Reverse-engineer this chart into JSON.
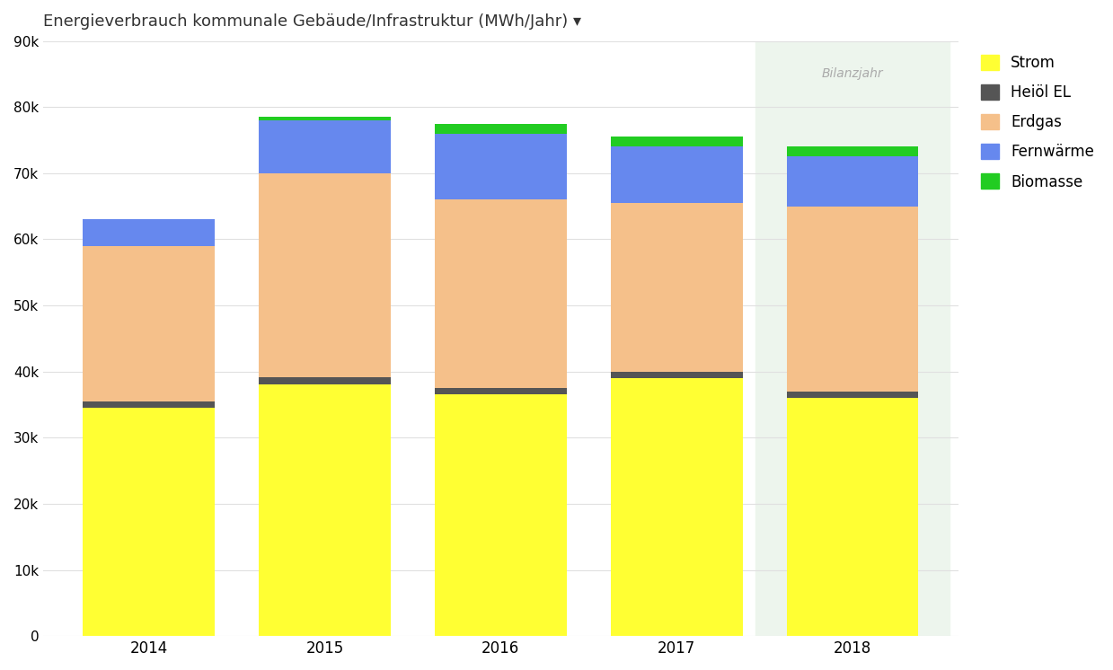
{
  "years": [
    "2014",
    "2015",
    "2016",
    "2017",
    "2018"
  ],
  "strom": [
    34500,
    38000,
    36500,
    39000,
    36000
  ],
  "heizoel": [
    1000,
    1200,
    1000,
    1000,
    1000
  ],
  "erdgas": [
    23500,
    30800,
    28500,
    25500,
    28000
  ],
  "fernwaerme": [
    4000,
    8000,
    10000,
    8500,
    7500
  ],
  "biomasse": [
    0,
    500,
    1500,
    1500,
    1500
  ],
  "color_strom": "#ffff33",
  "color_heizoel": "#555555",
  "color_erdgas": "#f5c08a",
  "color_fernwaerme": "#6688ee",
  "color_biomasse": "#22cc22",
  "title": "Energieverbrauch kommunale Gebäude/Infrastruktur (MWh/Jahr) ▾",
  "ylim": [
    0,
    90000
  ],
  "yticks": [
    0,
    10000,
    20000,
    30000,
    40000,
    50000,
    60000,
    70000,
    80000,
    90000
  ],
  "ytick_labels": [
    "0",
    "10k",
    "20k",
    "30k",
    "40k",
    "50k",
    "60k",
    "70k",
    "80k",
    "90k"
  ],
  "bg_color": "#ffffff",
  "grid_color": "#e0e0e0",
  "bilanzjahr_bg": "#edf5ed",
  "bilanzjahr_text": "Bilanzjahr",
  "bar_width": 0.75,
  "legend_labels": [
    "Strom",
    "Heiöl EL",
    "Erdgas",
    "Fernwärme",
    "Biomasse"
  ]
}
